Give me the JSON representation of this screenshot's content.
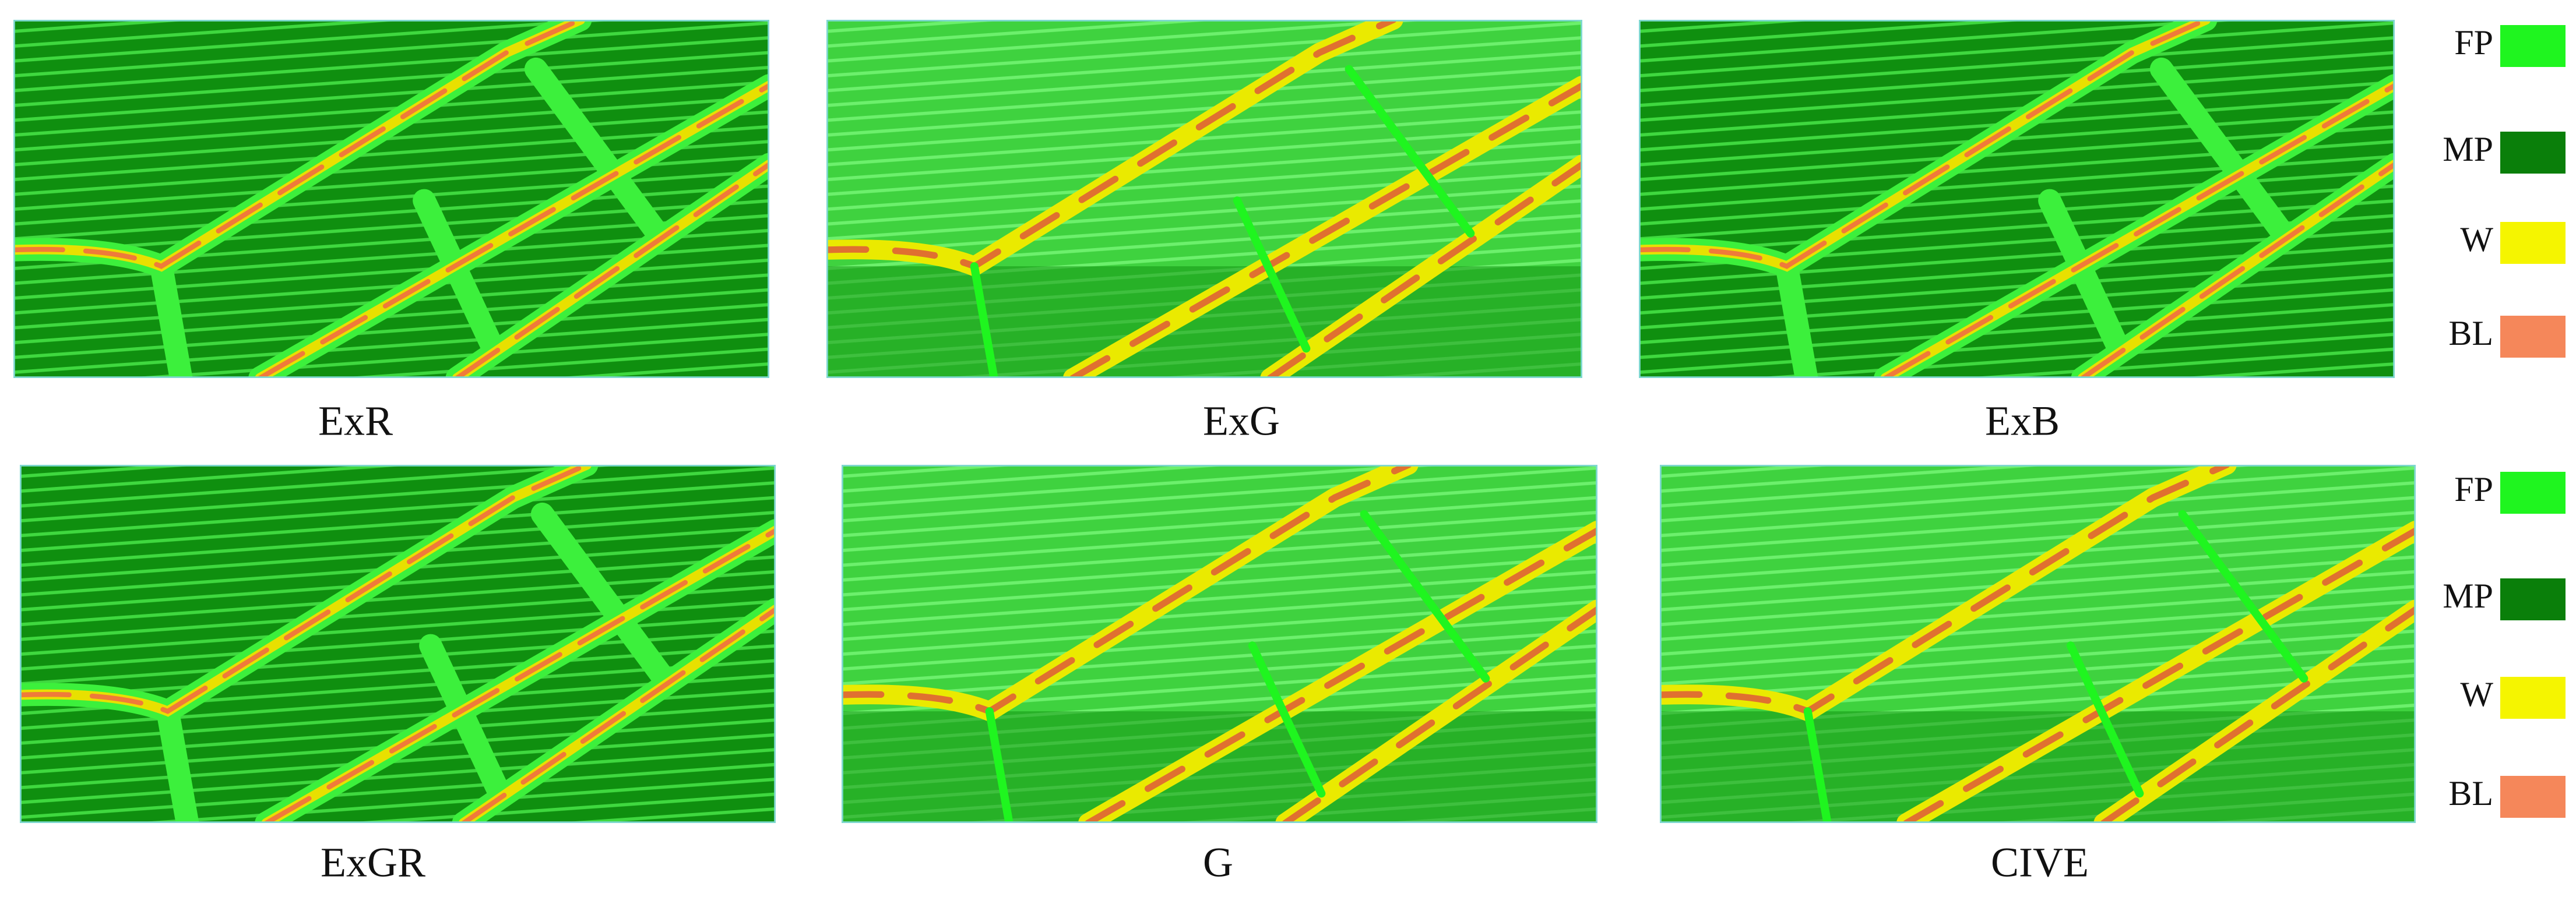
{
  "panels": [
    {
      "label": "ExR"
    },
    {
      "label": "ExG"
    },
    {
      "label": "ExB"
    },
    {
      "label": "ExGR"
    },
    {
      "label": "G"
    },
    {
      "label": "CIVE"
    }
  ],
  "legends": [
    {
      "items": [
        {
          "label": "FP",
          "color": "#1ff51f"
        },
        {
          "label": "MP",
          "color": "#0a7f0a"
        },
        {
          "label": "W",
          "color": "#f5f500"
        },
        {
          "label": "BL",
          "color": "#f5875a"
        }
      ]
    },
    {
      "items": [
        {
          "label": "FP",
          "color": "#1ff51f"
        },
        {
          "label": "MP",
          "color": "#0a7f0a"
        },
        {
          "label": "W",
          "color": "#f5f500"
        },
        {
          "label": "BL",
          "color": "#f5875a"
        }
      ]
    }
  ]
}
